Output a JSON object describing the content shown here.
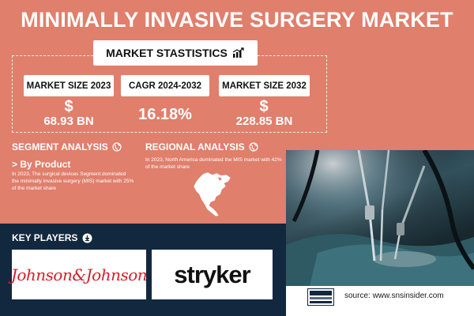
{
  "title": "MINIMALLY INVASIVE SURGERY MARKET",
  "market_statistics": {
    "label": "MARKET STASTISTICS",
    "stats": [
      {
        "label": "MARKET SIZE 2023",
        "currency": "$",
        "value": "68.93 BN"
      },
      {
        "label": "CAGR 2024-2032",
        "currency": "",
        "value": "16.18%"
      },
      {
        "label": "MARKET SIZE 2032",
        "currency": "$",
        "value": "228.85 BN"
      }
    ]
  },
  "segment_analysis": {
    "title": "SEGMENT ANALYSIS",
    "subtitle": "> By Product",
    "text": "In 2023, The surgical devices Segment dominated the minimally invasive surgery (MIS) market with 25% of the market share"
  },
  "regional_analysis": {
    "title": "REGIONAL ANALYSIS",
    "text": "In 2023, North America dominated the MIS market with 42% of the market share"
  },
  "key_players": {
    "title": "KEY PLAYERS",
    "logos": [
      "Johnson&Johnson",
      "stryker"
    ]
  },
  "footer": {
    "source": "source: www.snsinsider.com"
  },
  "colors": {
    "background": "#e07f6c",
    "navy": "#12283e",
    "jj_red": "#d21f2a"
  }
}
